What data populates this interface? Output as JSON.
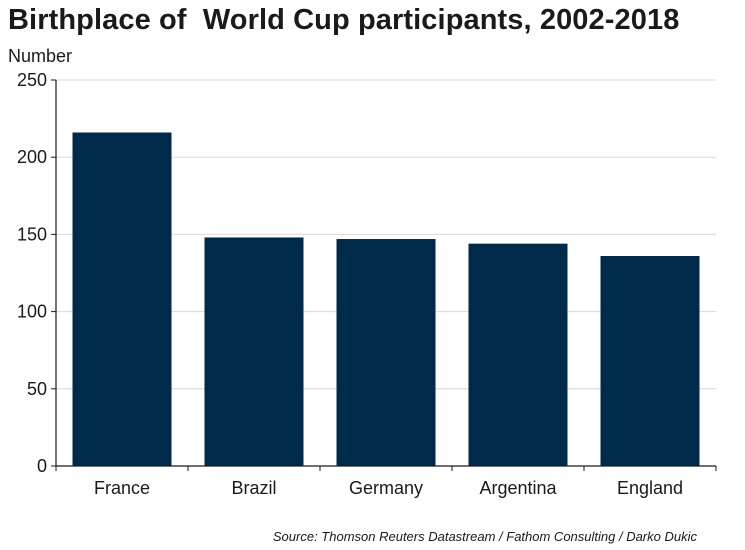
{
  "chart_data": {
    "type": "bar",
    "title": "Birthplace of  World Cup participants, 2002-2018",
    "ylabel": "Number",
    "xlabel": "",
    "categories": [
      "France",
      "Brazil",
      "Germany",
      "Argentina",
      "England"
    ],
    "values": [
      216,
      148,
      147,
      144,
      136
    ],
    "ylim": [
      0,
      250
    ],
    "yticks": [
      0,
      50,
      100,
      150,
      200,
      250
    ],
    "grid": true,
    "legend": "none",
    "source": "Source: Thomson Reuters Datastream / Fathom Consulting / Darko Dukic",
    "colors": {
      "bar": "#002a4a",
      "grid": "#d9d9d9",
      "axis": "#1a1a1a"
    }
  }
}
